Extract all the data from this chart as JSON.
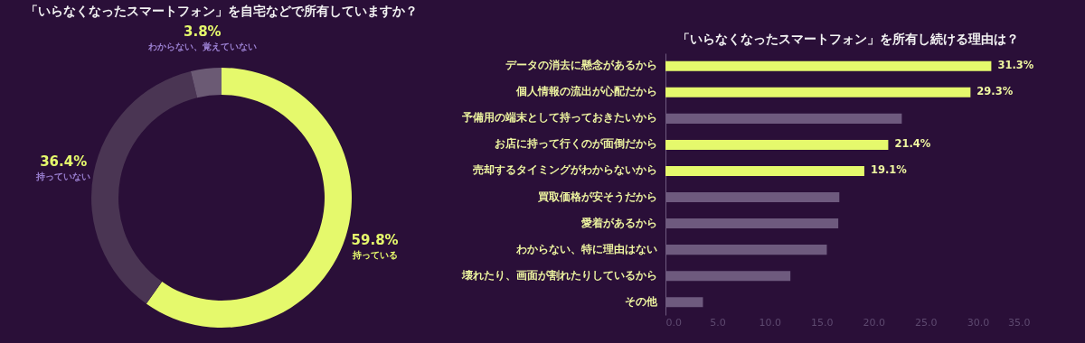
{
  "chart_data": [
    {
      "type": "donut",
      "title": "「いらなくなったスマートフォン」を自宅などで所有していますか？",
      "categories": [
        "持っている",
        "持っていない",
        "わからない、覚えていない"
      ],
      "values": [
        59.8,
        36.4,
        3.8
      ],
      "colors": [
        "#e5f96c",
        "#4a3553",
        "#6b5a74"
      ],
      "value_labels": [
        "59.8%",
        "36.4%",
        "3.8%"
      ]
    },
    {
      "type": "bar",
      "orientation": "horizontal",
      "title": "「いらなくなったスマートフォン」を所有し続ける理由は？",
      "categories": [
        "データの消去に懸念があるから",
        "個人情報の流出が心配だから",
        "予備用の端末として持っておきたいから",
        "お店に持って行くのが面倒だから",
        "売却するタイミングがわからないから",
        "買取価格が安そうだから",
        "愛着があるから",
        "わからない、特に理由はない",
        "壊れたり、画面が割れたりしているから",
        "その他"
      ],
      "values": [
        31.3,
        29.3,
        22.7,
        21.4,
        19.1,
        16.7,
        16.6,
        15.5,
        12.0,
        3.6
      ],
      "colors": [
        "#e5f96c",
        "#e5f96c",
        "#6e5a7e",
        "#e5f96c",
        "#e5f96c",
        "#6e5a7e",
        "#6e5a7e",
        "#6e5a7e",
        "#6e5a7e",
        "#6e5a7e"
      ],
      "value_labels": [
        "31.3%",
        "29.3%",
        null,
        "21.4%",
        "19.1%",
        null,
        null,
        null,
        null,
        null
      ],
      "xlim": [
        0,
        35
      ],
      "xticks": [
        {
          "value": 0,
          "label": "0.0"
        },
        {
          "value": 5,
          "label": "5.0"
        },
        {
          "value": 10,
          "label": "10.0"
        },
        {
          "value": 15,
          "label": "15.0"
        },
        {
          "value": 20,
          "label": "20.0"
        },
        {
          "value": 25,
          "label": "25.0"
        },
        {
          "value": 30,
          "label": "30.0"
        },
        {
          "value": 35,
          "label": "35.0"
        }
      ],
      "grid": false
    }
  ]
}
